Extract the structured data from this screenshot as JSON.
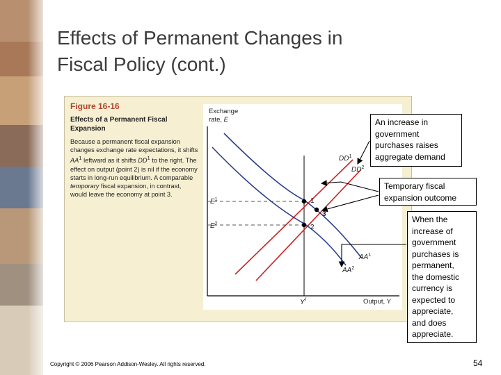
{
  "slide": {
    "title": "Effects of Permanent Changes in\nFiscal Policy (cont.)",
    "copyright": "Copyright © 2006 Pearson Addison-Wesley. All rights reserved.",
    "page_number": "54"
  },
  "figure": {
    "number": "Figure 16-16",
    "title": "Effects of a Permanent Fiscal\nExpansion",
    "caption_parts": [
      "Because a permanent fiscal expansion changes exchange rate expectations, it shifts ",
      "AA",
      "1",
      " leftward as it shifts ",
      "DD",
      "1",
      " to the right. The effect on output (point 2) is nil if the economy starts in long-run equilibrium. A comparable ",
      "temporary",
      " fiscal expansion, in contrast, would leave the economy at point 3."
    ]
  },
  "diagram": {
    "y_axis_label": "Exchange\nrate, E",
    "x_axis_label": "Output, Y",
    "x_tick": "Y",
    "x_tick_sup": "f",
    "e1_label": "E",
    "e1_sup": "1",
    "e2_label": "E",
    "e2_sup": "2",
    "dd1_label": "DD",
    "dd1_sup": "1",
    "dd2_label": "DD",
    "dd2_sup": "2",
    "aa1_label": "AA",
    "aa1_sup": "1",
    "aa2_label": "AA",
    "aa2_sup": "2",
    "point_1": "1",
    "point_2": "2",
    "point_3": "3",
    "curve_colors": {
      "DD": "#cc2222",
      "AA": "#2a3f8f"
    }
  },
  "callouts": {
    "demand": "An increase in\ngovernment\npurchases raises\naggregate demand",
    "temporary": "Temporary fiscal\nexpansion outcome",
    "permanent": "When the\nincrease of\ngovernment\npurchases is\npermanent,\nthe domestic\ncurrency is\nexpected to\nappreciate,\nand does\nappreciate."
  }
}
